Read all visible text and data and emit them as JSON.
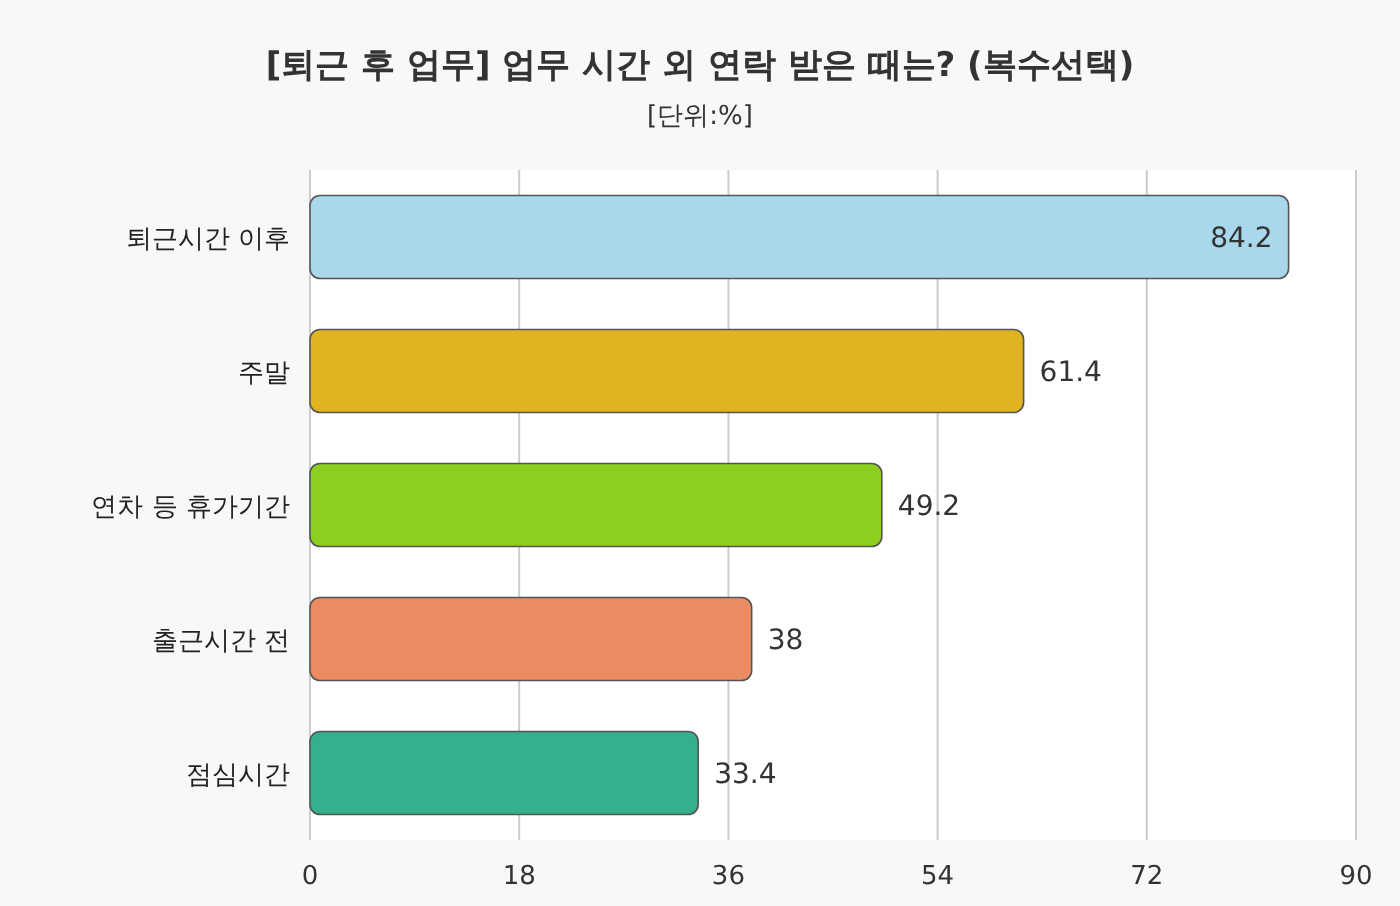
{
  "chart_data": {
    "type": "bar",
    "orientation": "horizontal",
    "title": "[퇴근 후 업무] 업무 시간 외 연락 받은 때는? (복수선택)",
    "subtitle": "[단위:%]",
    "categories": [
      "퇴근시간 이후",
      "주말",
      "연차 등 휴가기간",
      "출근시간 전",
      "점심시간"
    ],
    "values": [
      84.2,
      61.4,
      49.2,
      38,
      33.4
    ],
    "colors": [
      "#a9d8ec",
      "#e0b321",
      "#8ccf1f",
      "#ec8a62",
      "#33b08e"
    ],
    "data_labels": true,
    "xlim": [
      0,
      90
    ],
    "xticks": [
      0,
      18,
      36,
      54,
      72,
      90
    ],
    "grid": "x"
  }
}
